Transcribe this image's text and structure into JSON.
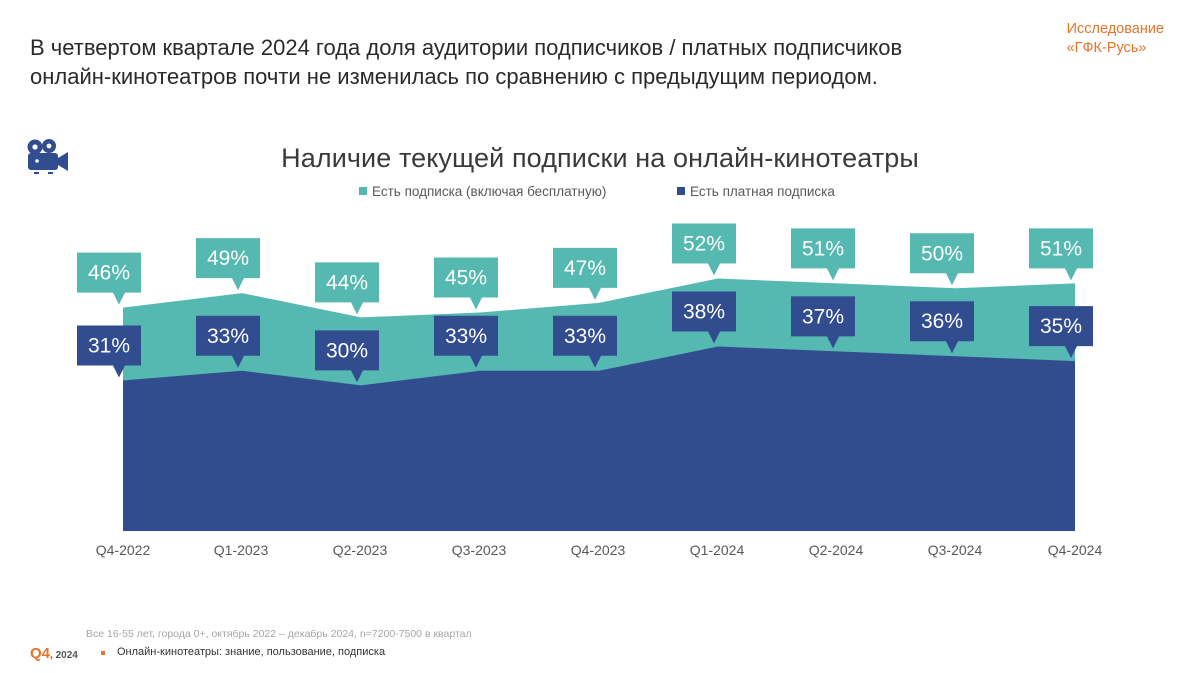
{
  "headline": {
    "line1": "В четвертом квартале 2024 года доля аудитории подписчиков / платных подписчиков",
    "line2": "онлайн-кинотеатров почти не изменилась по сравнению с предыдущим периодом."
  },
  "brand": {
    "line1": "Исследование",
    "line2": "«ГФК-Русь»"
  },
  "icon": "video-camera-icon",
  "colors": {
    "teal": "#55b9b1",
    "navy": "#314d8f",
    "orange": "#e5742a"
  },
  "chart_data": {
    "type": "area",
    "title": "Наличие текущей подписки на онлайн-кинотеатры",
    "categories": [
      "Q4-2022",
      "Q1-2023",
      "Q2-2023",
      "Q3-2023",
      "Q4-2023",
      "Q1-2024",
      "Q2-2024",
      "Q3-2024",
      "Q4-2024"
    ],
    "series": [
      {
        "name": "Есть подписка (включая бесплатную)",
        "color": "#55b9b1",
        "values": [
          46,
          49,
          44,
          45,
          47,
          52,
          51,
          50,
          51
        ],
        "labels": [
          "46%",
          "49%",
          "44%",
          "45%",
          "47%",
          "52%",
          "51%",
          "50%",
          "51%"
        ]
      },
      {
        "name": "Есть платная подписка",
        "color": "#314d8f",
        "values": [
          31,
          33,
          30,
          33,
          33,
          38,
          37,
          36,
          35
        ],
        "labels": [
          "31%",
          "33%",
          "30%",
          "33%",
          "33%",
          "38%",
          "37%",
          "36%",
          "35%"
        ]
      }
    ],
    "ylim": [
      0,
      100
    ],
    "grid": false,
    "legend": "top-center",
    "xlabel": "",
    "ylabel": ""
  },
  "footer": {
    "note": "Все 16-55 лет, города 0+, октябрь 2022 – декабрь 2024, n=7200-7500 в квартал",
    "period_q": "Q4",
    "period_y": ", 2024",
    "report": "Онлайн-кинотеатры: знание, пользование, подписка"
  }
}
